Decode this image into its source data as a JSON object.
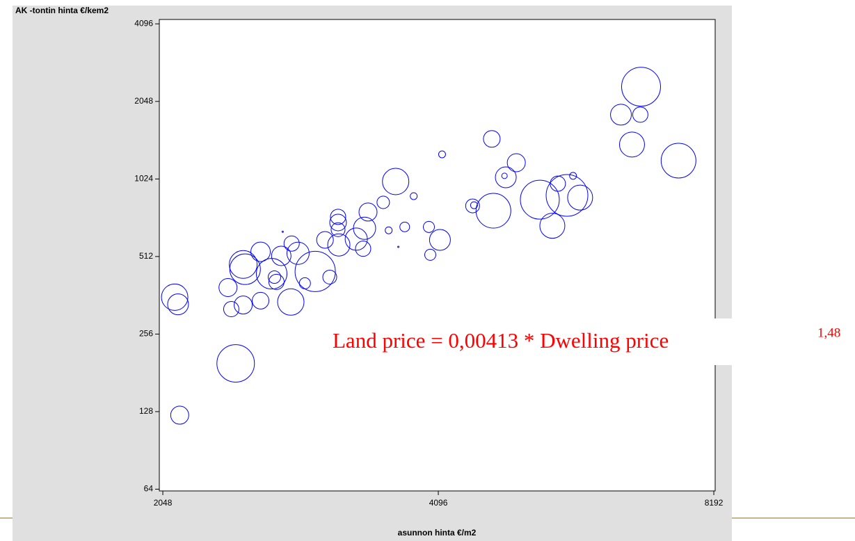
{
  "chart_data": {
    "type": "scatter",
    "y_label": "AK -tontin hinta €/kem2",
    "x_label": "asunnon hinta €/m2",
    "annotation": {
      "text": "Land price = 0,00413 * Dwelling price",
      "exponent": "1,48",
      "color": "#ff0000"
    },
    "xscale": "log",
    "yscale": "log",
    "xlim": [
      2030,
      8220
    ],
    "ylim": [
      63,
      4260
    ],
    "xticks": [
      2048,
      4096,
      8192
    ],
    "yticks": [
      64,
      128,
      256,
      512,
      1024,
      2048,
      4096
    ],
    "grid": false,
    "x": [
      2110,
      2128,
      2137,
      2460,
      2413,
      2433,
      2507,
      2519,
      2507,
      2619,
      2619,
      2693,
      2712,
      2726,
      2759,
      2826,
      2832,
      2878,
      2928,
      3005,
      3117,
      3080,
      3183,
      3183,
      3189,
      3183,
      3332,
      3390,
      3402,
      3432,
      3566,
      3615,
      3679,
      3764,
      3850,
      4000,
      4014,
      4113,
      4135,
      4465,
      4481,
      4686,
      4705,
      4838,
      4854,
      4984,
      5288,
      5457,
      5533,
      5662,
      5749,
      5852,
      6485,
      6668,
      6822,
      6809,
      7496,
      2769,
      3704
    ],
    "series": [
      {
        "color": "#0000ff",
        "values": [
          356,
          334,
          124,
          197,
          388,
          320,
          332,
          457,
          477,
          534,
          345,
          439,
          426,
          408,
          515,
          341,
          575,
          527,
          403,
          448,
          426,
          594,
          730,
          694,
          568,
          651,
          598,
          549,
          659,
          762,
          831,
          647,
          1001,
          667,
          878,
          667,
          520,
          594,
          1276,
          805,
          810,
          1465,
          771,
          1053,
          1039,
          1184,
          851,
          674,
          982,
          884,
          1053,
          867,
          1819,
          1393,
          2335,
          1819,
          1206,
          639,
          558
        ],
        "sizes": [
          19,
          15,
          13,
          27,
          13,
          11,
          13,
          22,
          20,
          14,
          12,
          22,
          9,
          11,
          14,
          19,
          11,
          16,
          8,
          29,
          10,
          12,
          11,
          12,
          16,
          10,
          16,
          11,
          16,
          13,
          9,
          5,
          19,
          7,
          5,
          8,
          8,
          15,
          5,
          10,
          5,
          12,
          25,
          4,
          15,
          13,
          28,
          18,
          11,
          30,
          5,
          18,
          15,
          18,
          28,
          11,
          25,
          1,
          1
        ]
      }
    ]
  }
}
